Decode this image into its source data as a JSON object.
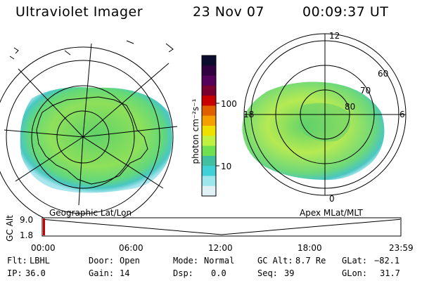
{
  "header": {
    "instrument": "Ultraviolet Imager",
    "date": "23 Nov 07",
    "time": "00:09:37 UT"
  },
  "left_panel": {
    "caption": "Geographic Lat/Lon"
  },
  "right_panel": {
    "caption": "Apex MLat/MLT",
    "mlt_labels": {
      "top": "12",
      "left": "18",
      "right": "6",
      "bottom": "0"
    },
    "mlat_labels": [
      "60",
      "70",
      "80"
    ]
  },
  "colorbar": {
    "unit_label": "photon cm⁻²s⁻¹",
    "tick_labels": [
      "100",
      "10"
    ],
    "colors": [
      "#0b0b2e",
      "#300040",
      "#55005a",
      "#7a0030",
      "#c80000",
      "#e06000",
      "#f5a000",
      "#f0e000",
      "#c0f040",
      "#70e050",
      "#40c0a0",
      "#40d0d8",
      "#9de6ec",
      "#e0f2f5"
    ]
  },
  "timeline": {
    "ylabel": "GC Alt",
    "ytick_labels": [
      "9.0",
      "1.8"
    ],
    "xtick_labels": [
      "00:00",
      "06:00",
      "12:00",
      "18:00",
      "23:59"
    ],
    "current_marker_color": "#cc0000"
  },
  "chart_data": {
    "type": "line",
    "title": "",
    "xlabel": "",
    "ylabel": "GC Alt",
    "x": [
      "00:00",
      "06:00",
      "12:00",
      "18:00",
      "23:59"
    ],
    "series": [
      {
        "values": [
          8.9,
          5.4,
          1.8,
          5.4,
          8.9
        ]
      }
    ],
    "ylim": [
      1.8,
      9.0
    ]
  },
  "info": {
    "flt_label": "Flt:",
    "flt_value": "LBHL",
    "ip_label": "IP:",
    "ip_value": "36.0",
    "door_label": "Door:",
    "door_value": "Open",
    "gain_label": "Gain:",
    "gain_value": "14",
    "mode_label": "Mode:",
    "mode_value": "Normal",
    "dsp_label": "Dsp:",
    "dsp_value": "0.0",
    "gcalt_label": "GC Alt:",
    "gcalt_value": "8.7 Re",
    "seq_label": "Seq:",
    "seq_value": "39",
    "glat_label": "GLat:",
    "glat_value": "−82.1",
    "glon_label": "GLon:",
    "glon_value": "31.7"
  }
}
